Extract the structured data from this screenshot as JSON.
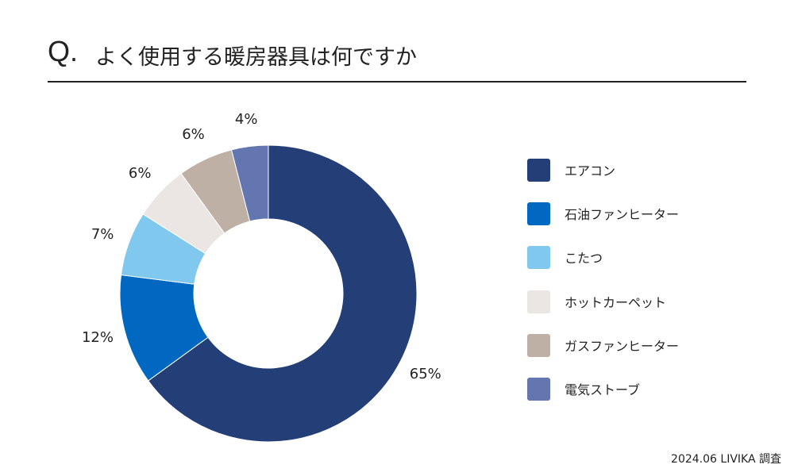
{
  "title": {
    "mark": "Q.",
    "question": "よく使用する暖房器具は何ですか"
  },
  "chart_data": {
    "type": "pie",
    "donut": true,
    "slices": [
      {
        "label": "エアコン",
        "value": 65,
        "display": "65%",
        "color": "#243f78"
      },
      {
        "label": "石油ファンヒーター",
        "value": 12,
        "display": "12%",
        "color": "#0068c0"
      },
      {
        "label": "こたつ",
        "value": 7,
        "display": "7%",
        "color": "#80c8ee"
      },
      {
        "label": "ホットカーペット",
        "value": 6,
        "display": "6%",
        "color": "#ebe6e3"
      },
      {
        "label": "ガスファンヒーター",
        "value": 6,
        "display": "6%",
        "color": "#bfb0a6"
      },
      {
        "label": "電気ストーブ",
        "value": 4,
        "display": "4%",
        "color": "#6476b0"
      }
    ],
    "legend_position": "right"
  },
  "source": "2024.06 LIVIKA 調査"
}
